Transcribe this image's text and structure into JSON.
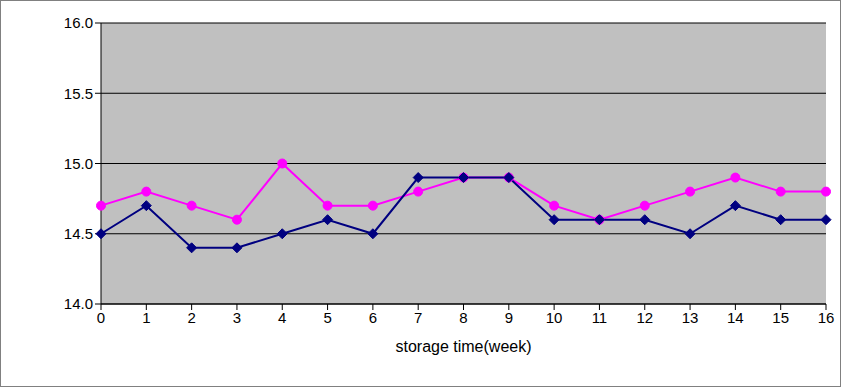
{
  "chart_data": {
    "type": "line",
    "x_label": "storage time(week)",
    "categories": [
      "0",
      "1",
      "2",
      "3",
      "4",
      "5",
      "6",
      "7",
      "8",
      "9",
      "10",
      "11",
      "12",
      "13",
      "14",
      "15",
      "16"
    ],
    "series": [
      {
        "color": "#ff00ff",
        "marker": "circle",
        "values": [
          14.7,
          14.8,
          14.7,
          14.6,
          15.0,
          14.7,
          14.7,
          14.8,
          14.9,
          14.9,
          14.7,
          14.6,
          14.7,
          14.8,
          14.9,
          14.8,
          14.8
        ]
      },
      {
        "color": "#000080",
        "marker": "diamond",
        "values": [
          14.5,
          14.7,
          14.4,
          14.4,
          14.5,
          14.6,
          14.5,
          14.9,
          14.9,
          14.9,
          14.6,
          14.6,
          14.6,
          14.5,
          14.7,
          14.6,
          14.6
        ]
      }
    ],
    "ylim": [
      14.0,
      16.0
    ],
    "yticks": [
      {
        "value": 14.0,
        "label": "14.0"
      },
      14.5,
      {
        "value": 15.0,
        "label": "15.0"
      },
      15.5,
      {
        "value": 16.0,
        "label": "16.0"
      }
    ],
    "grid": true
  }
}
